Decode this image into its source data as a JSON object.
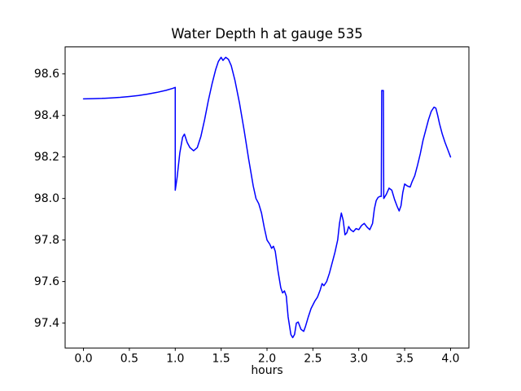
{
  "chart_data": {
    "type": "line",
    "title": "Water Depth h at gauge 535",
    "xlabel": "hours",
    "ylabel": "",
    "line_color": "#0000ff",
    "background_color": "#ffffff",
    "grid": false,
    "legend": "none",
    "xlim": [
      -0.2,
      4.2
    ],
    "ylim": [
      97.28,
      98.73
    ],
    "xticks": [
      0.0,
      0.5,
      1.0,
      1.5,
      2.0,
      2.5,
      3.0,
      3.5,
      4.0
    ],
    "xtick_labels": [
      "0.0",
      "0.5",
      "1.0",
      "1.5",
      "2.0",
      "2.5",
      "3.0",
      "3.5",
      "4.0"
    ],
    "yticks": [
      97.4,
      97.6,
      97.8,
      98.0,
      98.2,
      98.4,
      98.6
    ],
    "ytick_labels": [
      "97.4",
      "97.6",
      "97.8",
      "98.0",
      "98.2",
      "98.4",
      "98.6"
    ],
    "series": [
      {
        "name": "h",
        "x": [
          0.0,
          0.1,
          0.2,
          0.3,
          0.4,
          0.5,
          0.6,
          0.7,
          0.8,
          0.9,
          0.97,
          1.0,
          1.0,
          1.02,
          1.05,
          1.08,
          1.1,
          1.13,
          1.16,
          1.2,
          1.24,
          1.28,
          1.32,
          1.36,
          1.4,
          1.44,
          1.47,
          1.5,
          1.52,
          1.55,
          1.58,
          1.61,
          1.65,
          1.7,
          1.75,
          1.8,
          1.85,
          1.88,
          1.91,
          1.94,
          1.97,
          2.0,
          2.03,
          2.05,
          2.07,
          2.09,
          2.12,
          2.15,
          2.17,
          2.19,
          2.21,
          2.23,
          2.26,
          2.28,
          2.3,
          2.32,
          2.34,
          2.37,
          2.4,
          2.42,
          2.45,
          2.48,
          2.52,
          2.55,
          2.58,
          2.6,
          2.62,
          2.65,
          2.68,
          2.71,
          2.74,
          2.77,
          2.79,
          2.81,
          2.83,
          2.85,
          2.87,
          2.89,
          2.91,
          2.94,
          2.97,
          3.0,
          3.03,
          3.06,
          3.09,
          3.12,
          3.15,
          3.17,
          3.19,
          3.21,
          3.23,
          3.245,
          3.25,
          3.268,
          3.272,
          3.3,
          3.33,
          3.36,
          3.39,
          3.42,
          3.44,
          3.46,
          3.48,
          3.5,
          3.53,
          3.56,
          3.58,
          3.61,
          3.64,
          3.67,
          3.7,
          3.73,
          3.76,
          3.79,
          3.82,
          3.84,
          3.86,
          3.88,
          3.91,
          3.94,
          3.97,
          4.0
        ],
        "y": [
          98.48,
          98.481,
          98.482,
          98.484,
          98.487,
          98.491,
          98.496,
          98.503,
          98.511,
          98.521,
          98.53,
          98.535,
          98.04,
          98.1,
          98.22,
          98.295,
          98.31,
          98.27,
          98.245,
          98.23,
          98.245,
          98.3,
          98.38,
          98.47,
          98.55,
          98.62,
          98.66,
          98.68,
          98.665,
          98.68,
          98.67,
          98.64,
          98.57,
          98.46,
          98.33,
          98.19,
          98.06,
          98.0,
          97.975,
          97.93,
          97.86,
          97.8,
          97.78,
          97.76,
          97.77,
          97.745,
          97.65,
          97.57,
          97.545,
          97.555,
          97.53,
          97.43,
          97.345,
          97.33,
          97.345,
          97.4,
          97.405,
          97.37,
          97.36,
          97.385,
          97.43,
          97.47,
          97.505,
          97.525,
          97.56,
          97.59,
          97.58,
          97.6,
          97.64,
          97.69,
          97.74,
          97.8,
          97.88,
          97.93,
          97.895,
          97.825,
          97.835,
          97.865,
          97.85,
          97.84,
          97.855,
          97.85,
          97.87,
          97.88,
          97.862,
          97.85,
          97.88,
          97.95,
          97.99,
          98.005,
          98.01,
          98.01,
          98.52,
          98.52,
          98.0,
          98.02,
          98.05,
          98.04,
          97.995,
          97.96,
          97.94,
          97.965,
          98.03,
          98.07,
          98.06,
          98.055,
          98.08,
          98.11,
          98.16,
          98.215,
          98.28,
          98.33,
          98.38,
          98.42,
          98.44,
          98.435,
          98.4,
          98.36,
          98.31,
          98.27,
          98.235,
          98.2
        ]
      }
    ]
  }
}
